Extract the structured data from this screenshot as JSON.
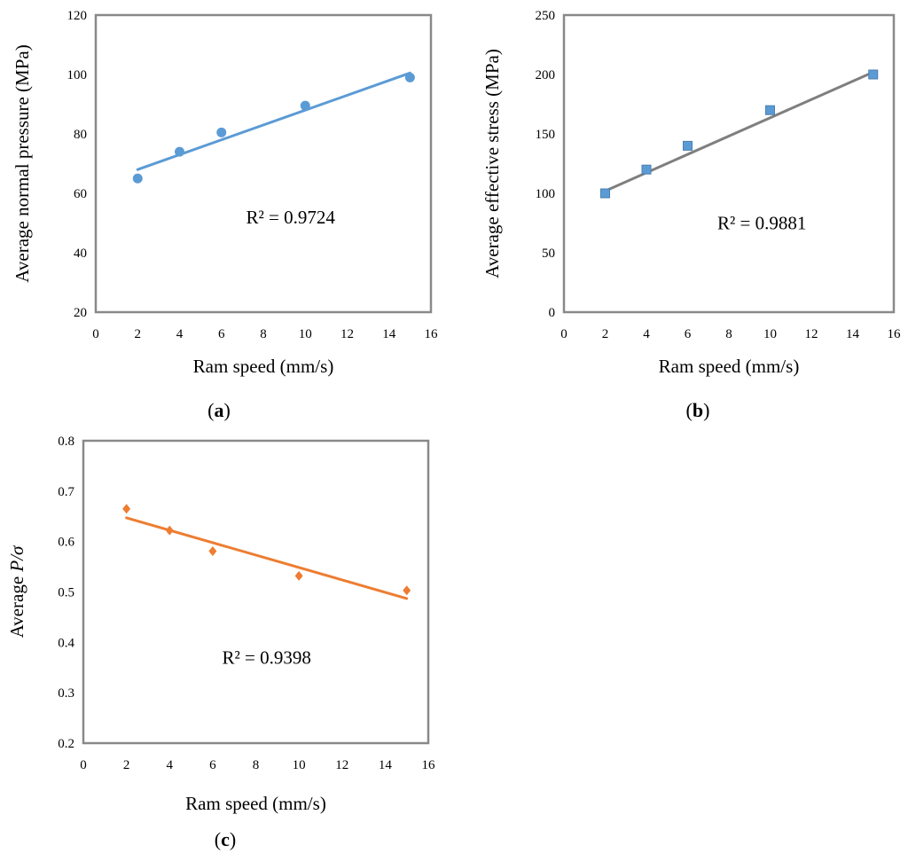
{
  "chart_data": [
    {
      "type": "scatter",
      "panel_label": "a",
      "xlabel": "Ram speed (mm/s)",
      "ylabel": "Average normal pressure (MPa)",
      "xlim": [
        0,
        16
      ],
      "ylim": [
        20,
        120
      ],
      "xticks": [
        0,
        2,
        4,
        6,
        8,
        10,
        12,
        14,
        16
      ],
      "yticks": [
        20,
        40,
        60,
        80,
        100,
        120
      ],
      "series": [
        {
          "name": "data",
          "marker": "circle",
          "color": "#5b9bd5",
          "x": [
            2,
            4,
            6,
            10,
            15
          ],
          "y": [
            65,
            74,
            80.5,
            89.5,
            99
          ]
        }
      ],
      "trendline": {
        "x": [
          2,
          15
        ],
        "y": [
          68,
          100.5
        ],
        "color": "#5b9bd5"
      },
      "annotation": "R² = 0.9724",
      "annotation_at": {
        "x": 9.3,
        "y": 52
      }
    },
    {
      "type": "scatter",
      "panel_label": "b",
      "xlabel": "Ram speed (mm/s)",
      "ylabel": "Average effective stress (MPa)",
      "xlim": [
        0,
        16
      ],
      "ylim": [
        0,
        250
      ],
      "xticks": [
        0,
        2,
        4,
        6,
        8,
        10,
        12,
        14,
        16
      ],
      "yticks": [
        0,
        50,
        100,
        150,
        200,
        250
      ],
      "series": [
        {
          "name": "data",
          "marker": "square",
          "color": "#5b9bd5",
          "x": [
            2,
            4,
            6,
            10,
            15
          ],
          "y": [
            100,
            120,
            140,
            170,
            200
          ]
        }
      ],
      "trendline": {
        "x": [
          2,
          15
        ],
        "y": [
          102,
          202
        ],
        "color": "#7f7f7f"
      },
      "annotation": "R² = 0.9881",
      "annotation_at": {
        "x": 9.6,
        "y": 75
      }
    },
    {
      "type": "scatter",
      "panel_label": "c",
      "xlabel": "Ram speed (mm/s)",
      "ylabel_prefix": "Average ",
      "ylabel_italic": "P/σ",
      "xlim": [
        0,
        16
      ],
      "ylim": [
        0.2,
        0.8
      ],
      "xticks": [
        0,
        2,
        4,
        6,
        8,
        10,
        12,
        14,
        16
      ],
      "yticks": [
        0.2,
        0.3,
        0.4,
        0.5,
        0.6,
        0.7,
        0.8
      ],
      "series": [
        {
          "name": "data",
          "marker": "diamond",
          "color": "#ed7d31",
          "x": [
            2,
            4,
            6,
            10,
            15
          ],
          "y": [
            0.665,
            0.622,
            0.581,
            0.532,
            0.503
          ]
        }
      ],
      "trendline": {
        "x": [
          2,
          15
        ],
        "y": [
          0.647,
          0.487
        ],
        "color": "#ed7d31"
      },
      "annotation": "R² = 0.9398",
      "annotation_at": {
        "x": 8.5,
        "y": 0.37
      }
    }
  ]
}
